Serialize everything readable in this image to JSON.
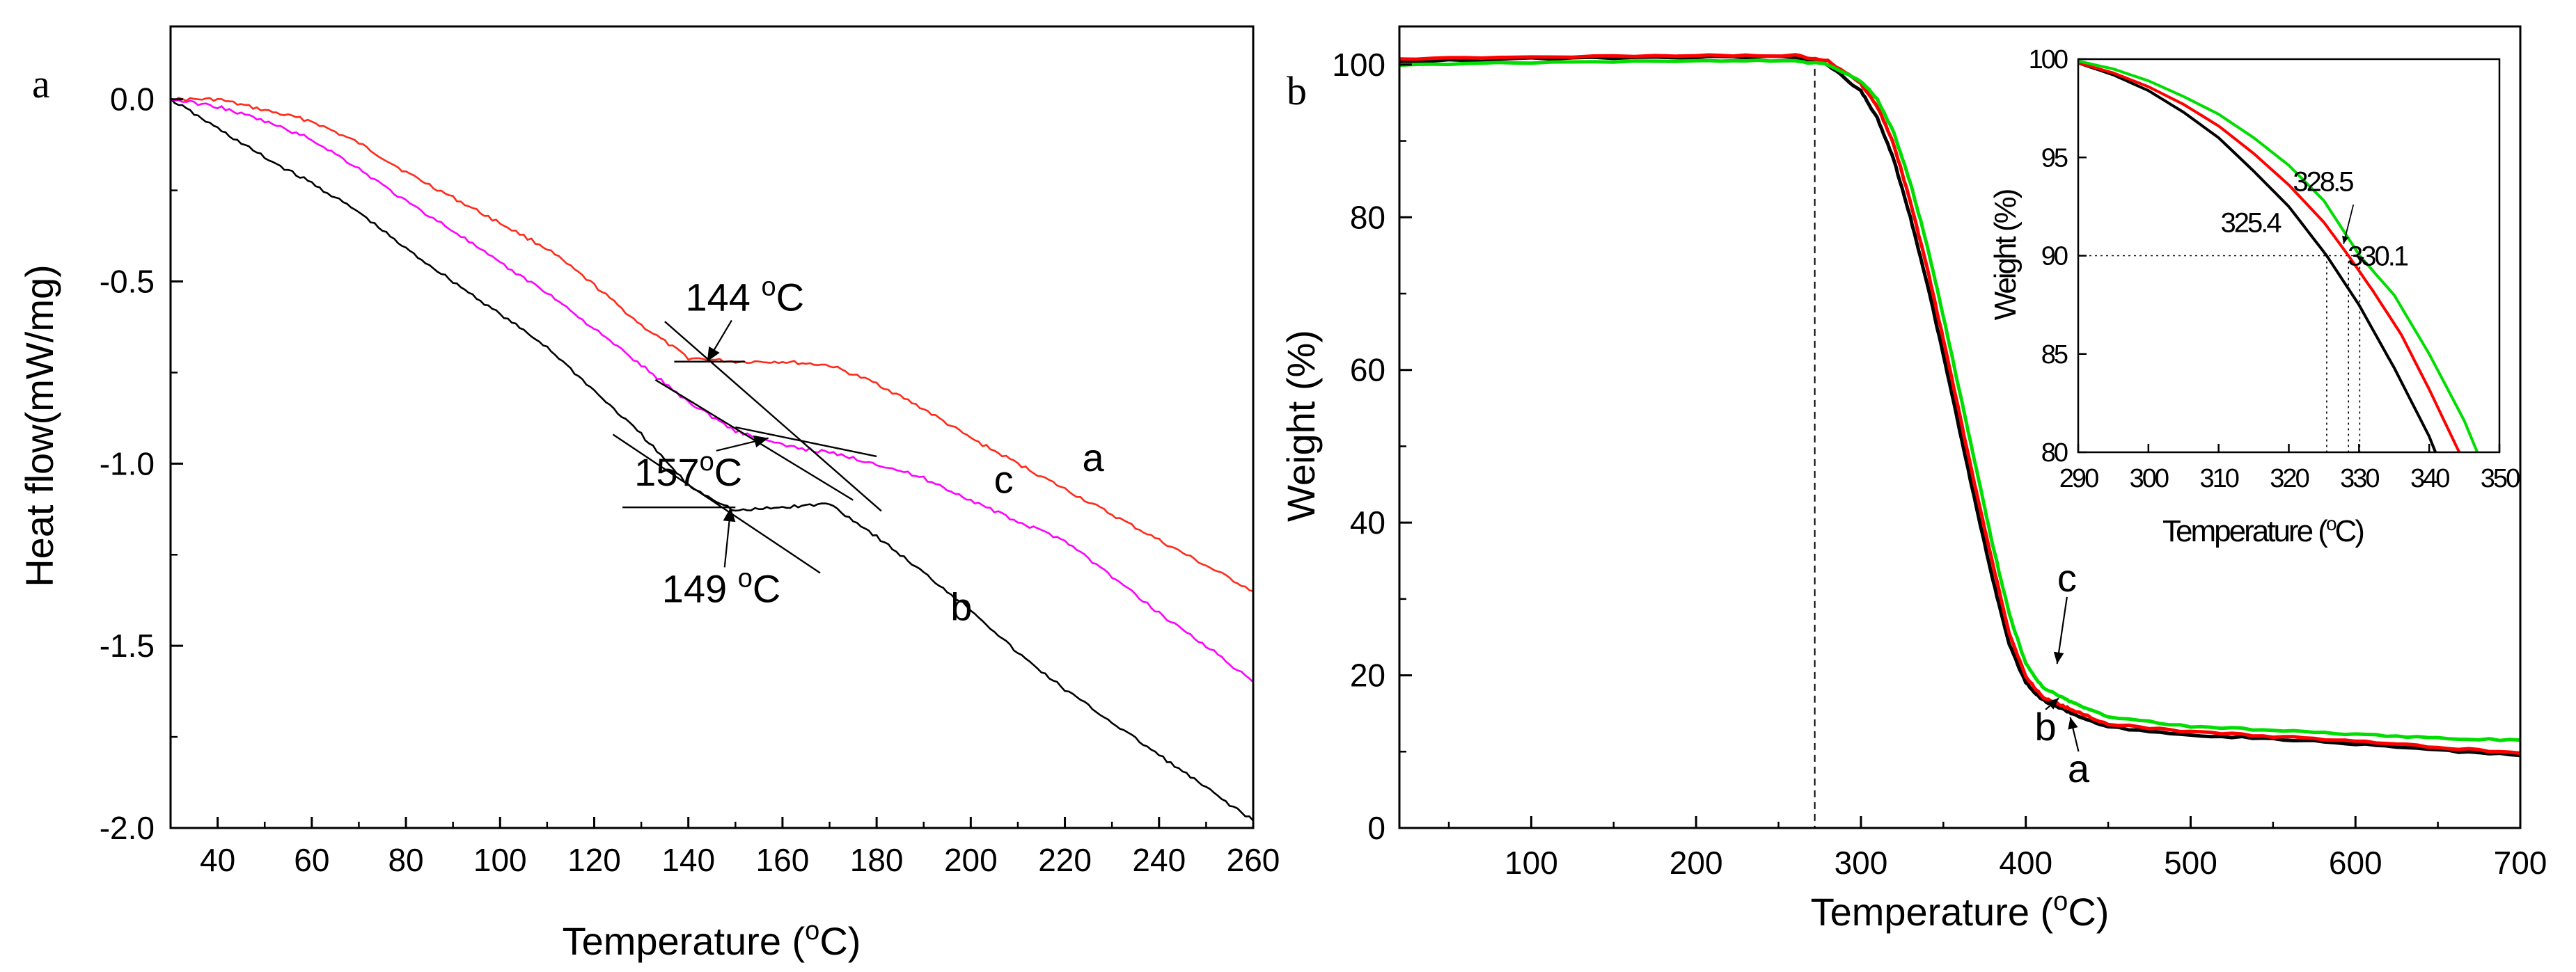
{
  "chart_data": [
    {
      "type": "line",
      "panel_label": "a",
      "xlabel_text": "Temperature (",
      "xlabel_sup": "o",
      "xlabel_end": "C)",
      "ylabel": "Heat flow(mW/mg)",
      "xlim": [
        30,
        260
      ],
      "ylim": [
        -2.0,
        0.2
      ],
      "xticks": [
        40,
        60,
        80,
        100,
        120,
        140,
        160,
        180,
        200,
        220,
        240,
        260
      ],
      "yticks": [
        0.0,
        -0.5,
        -1.0,
        -1.5,
        -2.0
      ],
      "ytick_labels": [
        "0.0",
        "-0.5",
        "-1.0",
        "-1.5",
        "-2.0"
      ],
      "series": [
        {
          "name": "a",
          "color": "#ff2a1a",
          "x": [
            30,
            40,
            50,
            60,
            70,
            80,
            90,
            100,
            110,
            120,
            130,
            140,
            150,
            160,
            170,
            180,
            190,
            200,
            210,
            220,
            230,
            240,
            250,
            260
          ],
          "y": [
            0.0,
            0.0,
            -0.03,
            -0.06,
            -0.12,
            -0.2,
            -0.27,
            -0.34,
            -0.41,
            -0.51,
            -0.62,
            -0.71,
            -0.72,
            -0.72,
            -0.73,
            -0.78,
            -0.85,
            -0.93,
            -1.0,
            -1.07,
            -1.14,
            -1.21,
            -1.28,
            -1.35
          ]
        },
        {
          "name": "b",
          "color": "#000000",
          "x": [
            30,
            40,
            50,
            60,
            70,
            80,
            90,
            100,
            110,
            120,
            130,
            140,
            150,
            160,
            170,
            180,
            190,
            200,
            210,
            220,
            230,
            240,
            250,
            260
          ],
          "y": [
            0.0,
            -0.08,
            -0.16,
            -0.23,
            -0.31,
            -0.41,
            -0.5,
            -0.59,
            -0.68,
            -0.8,
            -0.92,
            -1.06,
            -1.13,
            -1.12,
            -1.11,
            -1.2,
            -1.3,
            -1.4,
            -1.52,
            -1.62,
            -1.71,
            -1.8,
            -1.89,
            -1.98
          ]
        },
        {
          "name": "c",
          "color": "#ff00ff",
          "x": [
            30,
            40,
            50,
            60,
            70,
            80,
            90,
            100,
            110,
            120,
            130,
            140,
            150,
            160,
            170,
            180,
            190,
            200,
            210,
            220,
            230,
            240,
            250,
            260
          ],
          "y": [
            0.0,
            -0.02,
            -0.06,
            -0.11,
            -0.19,
            -0.28,
            -0.36,
            -0.45,
            -0.53,
            -0.63,
            -0.73,
            -0.83,
            -0.91,
            -0.95,
            -0.97,
            -1.0,
            -1.04,
            -1.1,
            -1.16,
            -1.21,
            -1.31,
            -1.41,
            -1.5,
            -1.6
          ]
        }
      ],
      "tangent_lines": [
        {
          "x": [
            135,
            181
          ],
          "y": [
            -0.61,
            -1.13
          ]
        },
        {
          "x": [
            137,
            152
          ],
          "y": [
            -0.72,
            -0.72
          ]
        },
        {
          "x": [
            133,
            175
          ],
          "y": [
            -0.77,
            -1.1
          ]
        },
        {
          "x": [
            150,
            180
          ],
          "y": [
            -0.9,
            -0.98
          ]
        },
        {
          "x": [
            124,
            168
          ],
          "y": [
            -0.92,
            -1.3
          ]
        },
        {
          "x": [
            126,
            150
          ],
          "y": [
            -1.12,
            -1.12
          ]
        }
      ],
      "annotations": [
        {
          "label_num": "144 ",
          "label_sup": "o",
          "label_end": "C",
          "x": 152,
          "y": -0.58,
          "arrow_to": [
            144,
            -0.72
          ]
        },
        {
          "label_num": "157",
          "label_sup": "o",
          "label_end": "C",
          "x": 140,
          "y": -1.06,
          "arrow_to": [
            157,
            -0.93
          ]
        },
        {
          "label_num": "149 ",
          "label_sup": "o",
          "label_end": "C",
          "x": 147,
          "y": -1.38,
          "arrow_to": [
            149,
            -1.12
          ]
        }
      ],
      "curve_labels": [
        {
          "text": "a",
          "x": 226,
          "y": -1.02
        },
        {
          "text": "c",
          "x": 207,
          "y": -1.08
        },
        {
          "text": "b",
          "x": 198,
          "y": -1.43
        }
      ]
    },
    {
      "type": "line",
      "panel_label": "b",
      "xlabel_text": "Temperature (",
      "xlabel_sup": "o",
      "xlabel_end": "C)",
      "ylabel": "Weight (%)",
      "xlim": [
        20,
        700
      ],
      "ylim": [
        0,
        105
      ],
      "xticks": [
        100,
        200,
        300,
        400,
        500,
        600,
        700
      ],
      "yticks": [
        0,
        20,
        40,
        60,
        80,
        100
      ],
      "ytick_labels": [
        "0",
        "20",
        "40",
        "60",
        "80",
        "100"
      ],
      "reference_line_x": 272,
      "series": [
        {
          "name": "a",
          "color": "#000000",
          "x": [
            20,
            100,
            200,
            260,
            280,
            300,
            310,
            320,
            330,
            340,
            350,
            360,
            370,
            380,
            390,
            400,
            410,
            420,
            430,
            450,
            500,
            550,
            600,
            650,
            700
          ],
          "y": [
            100.5,
            100.8,
            101.0,
            101.0,
            100.0,
            96.5,
            93.0,
            87.5,
            80.0,
            71.5,
            62.0,
            52.0,
            42.0,
            32.5,
            24.0,
            19.0,
            16.8,
            15.8,
            14.8,
            13.2,
            12.2,
            11.7,
            11.0,
            10.2,
            9.5
          ]
        },
        {
          "name": "b",
          "color": "#ff0000",
          "x": [
            20,
            100,
            200,
            260,
            280,
            300,
            310,
            320,
            330,
            340,
            350,
            360,
            370,
            380,
            390,
            400,
            410,
            420,
            430,
            450,
            500,
            550,
            600,
            650,
            700
          ],
          "y": [
            100.7,
            101.0,
            101.2,
            101.2,
            100.5,
            97.5,
            94.5,
            89.5,
            82.0,
            73.5,
            64.0,
            54.0,
            44.0,
            34.5,
            25.5,
            19.8,
            17.2,
            16.2,
            15.3,
            13.6,
            12.6,
            12.0,
            11.4,
            10.6,
            9.8
          ]
        },
        {
          "name": "c",
          "color": "#00dd00",
          "x": [
            20,
            100,
            200,
            260,
            280,
            300,
            310,
            320,
            330,
            340,
            350,
            360,
            370,
            380,
            390,
            400,
            410,
            420,
            430,
            450,
            500,
            550,
            600,
            650,
            700
          ],
          "y": [
            100.0,
            100.3,
            100.5,
            100.5,
            100.0,
            97.8,
            95.5,
            91.0,
            84.5,
            76.5,
            67.0,
            57.0,
            47.0,
            37.0,
            28.0,
            21.5,
            18.5,
            17.3,
            16.3,
            14.5,
            13.3,
            12.8,
            12.3,
            11.8,
            11.5
          ]
        }
      ],
      "curve_labels": [
        {
          "text": "c",
          "x": 425,
          "y": 31,
          "arrow_to": [
            419,
            21.5
          ]
        },
        {
          "text": "b",
          "x": 412,
          "y": 11.5,
          "arrow_to": [
            420,
            17
          ]
        },
        {
          "text": "a",
          "x": 432,
          "y": 6.0,
          "arrow_to": [
            427,
            14.5
          ]
        }
      ],
      "inset": {
        "type": "line",
        "xlabel_text": "Temperature (",
        "xlabel_sup": "o",
        "xlabel_end": "C)",
        "ylabel": "Weight (%)",
        "xlim": [
          290,
          350
        ],
        "ylim": [
          80,
          100
        ],
        "xticks": [
          290,
          300,
          310,
          320,
          330,
          340,
          350
        ],
        "xtick_labels": [
          "290",
          "300",
          "310",
          "320",
          "330",
          "340",
          "350"
        ],
        "yticks": [
          80,
          85,
          90,
          95,
          100
        ],
        "ytick_labels": [
          "80",
          "85",
          "90",
          "95",
          "100"
        ],
        "series": [
          {
            "name": "a",
            "color": "#000000",
            "x": [
              290,
              295,
              300,
              305,
              310,
              315,
              320,
              325.4,
              330,
              335,
              340,
              342
            ],
            "y": [
              99.8,
              99.2,
              98.4,
              97.3,
              96.0,
              94.3,
              92.5,
              90.0,
              87.5,
              84.3,
              80.8,
              79.0
            ]
          },
          {
            "name": "b",
            "color": "#ff0000",
            "x": [
              290,
              295,
              300,
              305,
              310,
              315,
              320,
              325,
              328.5,
              332,
              336,
              340,
              344,
              346
            ],
            "y": [
              99.8,
              99.3,
              98.6,
              97.7,
              96.6,
              95.2,
              93.6,
              91.7,
              90.0,
              88.2,
              86.0,
              83.2,
              80.2,
              78.8
            ]
          },
          {
            "name": "c",
            "color": "#00dd00",
            "x": [
              290,
              295,
              300,
              305,
              310,
              315,
              320,
              325,
              330.1,
              335,
              340,
              345,
              348
            ],
            "y": [
              99.9,
              99.5,
              98.9,
              98.1,
              97.2,
              96.0,
              94.6,
              92.8,
              90.0,
              88.0,
              85.0,
              81.6,
              79.0
            ]
          }
        ],
        "reference_y": 90,
        "annotations": [
          {
            "text": "325.4",
            "x": 314.5,
            "y": 91.2,
            "drop_x": 325.4
          },
          {
            "text": "328.5",
            "x": 324.8,
            "y": 93.3,
            "drop_x": 328.5
          },
          {
            "text": "330.1",
            "x": 332.6,
            "y": 89.5,
            "drop_x": 330.1
          }
        ]
      }
    }
  ]
}
